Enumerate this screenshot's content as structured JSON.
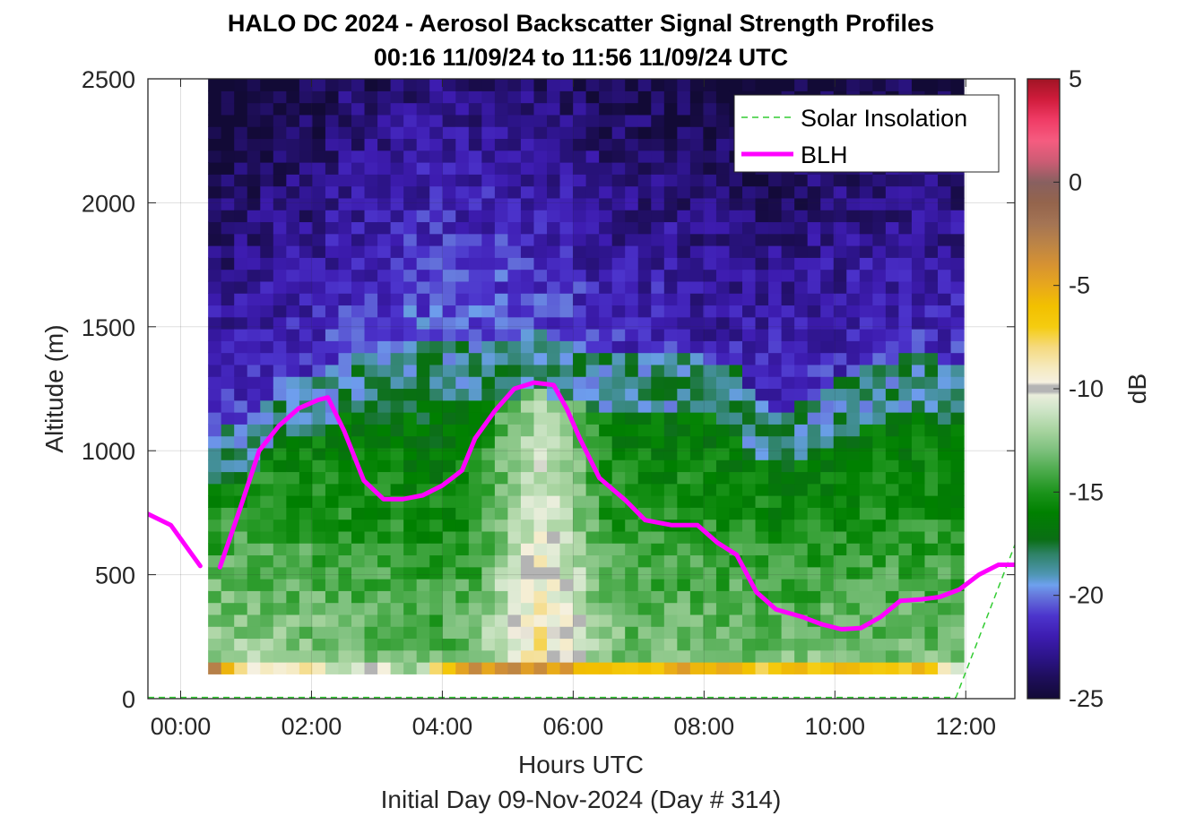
{
  "chart_data": {
    "type": "heatmap",
    "title": "HALO DC 2024 - Aerosol Backscatter Signal Strength Profiles",
    "subtitle": "00:16 11/09/24 to 11:56 11/09/24  UTC",
    "xlabel": "Hours UTC",
    "footer": "Initial Day 09-Nov-2024 (Day # 314)",
    "ylabel": "Altitude (m)",
    "colorbar_label": "dB",
    "xlim": [
      -0.5,
      12.75
    ],
    "ylim": [
      0,
      2500
    ],
    "x_ticks": [
      0,
      2,
      4,
      6,
      8,
      10,
      12
    ],
    "x_tick_labels": [
      "00:00",
      "02:00",
      "04:00",
      "06:00",
      "08:00",
      "10:00",
      "12:00"
    ],
    "y_ticks": [
      0,
      500,
      1000,
      1500,
      2000,
      2500
    ],
    "y_tick_labels": [
      "0",
      "500",
      "1000",
      "1500",
      "2000",
      "2500"
    ],
    "clim": [
      -25,
      5
    ],
    "colorbar_ticks": [
      5,
      0,
      -5,
      -10,
      -15,
      -20,
      -25
    ],
    "colorbar_tick_labels": [
      "5",
      "0",
      "-5",
      "-10",
      "-15",
      "-20",
      "-25"
    ],
    "grid": true,
    "legend_position": "top-right",
    "heatmap_x_range": [
      0.42,
      11.97
    ],
    "heatmap_y_range": [
      100,
      2500
    ],
    "bin_height_m": 48,
    "colors": {
      "blh": "#ff00ff",
      "solar": "#33cc33"
    },
    "series": [
      {
        "name": "Solar Insolation",
        "style": "dashed",
        "x": [
          -0.5,
          11.85,
          12.75
        ],
        "y": [
          5,
          5,
          620
        ]
      },
      {
        "name": "BLH",
        "style": "solid",
        "segments": [
          {
            "x": [
              -0.5,
              -0.15,
              0.3
            ],
            "y": [
              745,
              700,
              535
            ]
          },
          {
            "x": [
              0.6,
              0.9,
              1.2,
              1.5,
              1.8,
              2.1,
              2.25,
              2.5,
              2.8,
              3.1,
              3.4,
              3.7,
              4.0,
              4.3,
              4.5,
              4.8,
              5.1,
              5.4,
              5.7,
              5.9,
              6.1,
              6.4,
              6.8,
              7.1,
              7.5,
              7.9,
              8.2,
              8.5,
              8.8,
              9.1,
              9.5,
              9.8,
              10.1,
              10.4,
              10.7,
              11.0,
              11.3,
              11.6,
              11.9,
              12.2,
              12.5,
              12.75
            ],
            "y": [
              530,
              760,
              1000,
              1100,
              1170,
              1205,
              1215,
              1080,
              880,
              805,
              805,
              820,
              860,
              920,
              1050,
              1160,
              1250,
              1275,
              1265,
              1170,
              1050,
              890,
              800,
              720,
              700,
              700,
              630,
              580,
              430,
              360,
              330,
              300,
              280,
              285,
              330,
              395,
              400,
              410,
              440,
              500,
              540,
              540
            ]
          }
        ]
      }
    ],
    "colorbar_anchors": [
      {
        "v": -25,
        "c": "#120a36"
      },
      {
        "v": -24,
        "c": "#1e0e5a"
      },
      {
        "v": -23,
        "c": "#2c1488"
      },
      {
        "v": -22,
        "c": "#3d1cb0"
      },
      {
        "v": -21,
        "c": "#4c34cc"
      },
      {
        "v": -20,
        "c": "#6678dc"
      },
      {
        "v": -19.5,
        "c": "#6ea0ee"
      },
      {
        "v": -19,
        "c": "#4f96b4"
      },
      {
        "v": -18,
        "c": "#2e8266"
      },
      {
        "v": -17.3,
        "c": "#0a6e14"
      },
      {
        "v": -16,
        "c": "#008000"
      },
      {
        "v": -15,
        "c": "#1c941c"
      },
      {
        "v": -14,
        "c": "#4aaa4a"
      },
      {
        "v": -13,
        "c": "#7cc07c"
      },
      {
        "v": -12,
        "c": "#a8d4a0"
      },
      {
        "v": -11,
        "c": "#cfe5c8"
      },
      {
        "v": -10.3,
        "c": "#eaeedc"
      },
      {
        "v": -10.15,
        "c": "#b4b4b4"
      },
      {
        "v": -9.85,
        "c": "#b4b4b4"
      },
      {
        "v": -9.7,
        "c": "#f5f0e0"
      },
      {
        "v": -9,
        "c": "#f5eac0"
      },
      {
        "v": -8,
        "c": "#f5da80"
      },
      {
        "v": -7,
        "c": "#f5cc10"
      },
      {
        "v": -6,
        "c": "#f2c000"
      },
      {
        "v": -5,
        "c": "#e8a81c"
      },
      {
        "v": -4,
        "c": "#d69232"
      },
      {
        "v": -3,
        "c": "#bc8446"
      },
      {
        "v": -2,
        "c": "#a47454"
      },
      {
        "v": -1,
        "c": "#94644c"
      },
      {
        "v": 0,
        "c": "#886060"
      },
      {
        "v": 1,
        "c": "#cc5c74"
      },
      {
        "v": 2,
        "c": "#f55c80"
      },
      {
        "v": 3,
        "c": "#f03c66"
      },
      {
        "v": 4,
        "c": "#d01c3c"
      },
      {
        "v": 5,
        "c": "#a01424"
      }
    ],
    "x_centers": [
      0.52,
      0.72,
      0.92,
      1.12,
      1.32,
      1.52,
      1.72,
      1.92,
      2.12,
      2.32,
      2.52,
      2.72,
      2.92,
      3.12,
      3.32,
      3.52,
      3.72,
      3.92,
      4.12,
      4.32,
      4.52,
      4.72,
      4.92,
      5.12,
      5.32,
      5.52,
      5.72,
      5.92,
      6.12,
      6.32,
      6.52,
      6.72,
      6.92,
      7.12,
      7.32,
      7.52,
      7.72,
      7.92,
      8.12,
      8.32,
      8.52,
      8.72,
      8.92,
      9.12,
      9.32,
      9.52,
      9.72,
      9.92,
      10.12,
      10.32,
      10.52,
      10.72,
      10.92,
      11.12,
      11.32,
      11.52,
      11.72,
      11.92
    ],
    "profile_knots": [
      {
        "x": 0.5,
        "top": 1000,
        "mid": -12,
        "surf": -3,
        "strat": -21
      },
      {
        "x": 1.0,
        "top": 1050,
        "mid": -12,
        "surf": -9,
        "strat": -21
      },
      {
        "x": 1.5,
        "top": 1200,
        "mid": -12.5,
        "surf": -10,
        "strat": -21
      },
      {
        "x": 2.0,
        "top": 1200,
        "mid": -12.5,
        "surf": -8,
        "strat": -21
      },
      {
        "x": 2.5,
        "top": 1300,
        "mid": -13,
        "surf": -12,
        "strat": -20.5
      },
      {
        "x": 3.0,
        "top": 1300,
        "mid": -13,
        "surf": -9.5,
        "strat": -20.5
      },
      {
        "x": 3.5,
        "top": 1350,
        "mid": -13.5,
        "surf": -13,
        "strat": -20
      },
      {
        "x": 4.0,
        "top": 1350,
        "mid": -13.5,
        "surf": -8,
        "strat": -20
      },
      {
        "x": 4.5,
        "top": 1350,
        "mid": -13,
        "surf": -4,
        "strat": -20
      },
      {
        "x": 5.0,
        "top": 1350,
        "mid": -10.5,
        "surf": -4,
        "strat": -20
      },
      {
        "x": 5.5,
        "top": 1400,
        "mid": -8.5,
        "surf": -4,
        "strat": -20.5
      },
      {
        "x": 6.0,
        "top": 1350,
        "mid": -10,
        "surf": -5,
        "strat": -20.5
      },
      {
        "x": 6.5,
        "top": 1300,
        "mid": -12.5,
        "surf": -6,
        "strat": -21
      },
      {
        "x": 7.0,
        "top": 1300,
        "mid": -13,
        "surf": -6.5,
        "strat": -21
      },
      {
        "x": 7.5,
        "top": 1300,
        "mid": -13,
        "surf": -5.5,
        "strat": -21
      },
      {
        "x": 8.0,
        "top": 1300,
        "mid": -13,
        "surf": -5,
        "strat": -21.5
      },
      {
        "x": 8.5,
        "top": 1250,
        "mid": -13,
        "surf": -6,
        "strat": -21.5
      },
      {
        "x": 9.0,
        "top": 1100,
        "mid": -13,
        "surf": -7,
        "strat": -21
      },
      {
        "x": 9.5,
        "top": 1100,
        "mid": -13,
        "surf": -6,
        "strat": -21
      },
      {
        "x": 10.0,
        "top": 1200,
        "mid": -13,
        "surf": -6.5,
        "strat": -21
      },
      {
        "x": 10.5,
        "top": 1250,
        "mid": -13,
        "surf": -6.5,
        "strat": -21
      },
      {
        "x": 11.0,
        "top": 1300,
        "mid": -13,
        "surf": -6.5,
        "strat": -21
      },
      {
        "x": 11.5,
        "top": 1300,
        "mid": -13,
        "surf": -6,
        "strat": -21
      },
      {
        "x": 12.0,
        "top": 1250,
        "mid": -13,
        "surf": -12,
        "strat": -21
      }
    ]
  }
}
